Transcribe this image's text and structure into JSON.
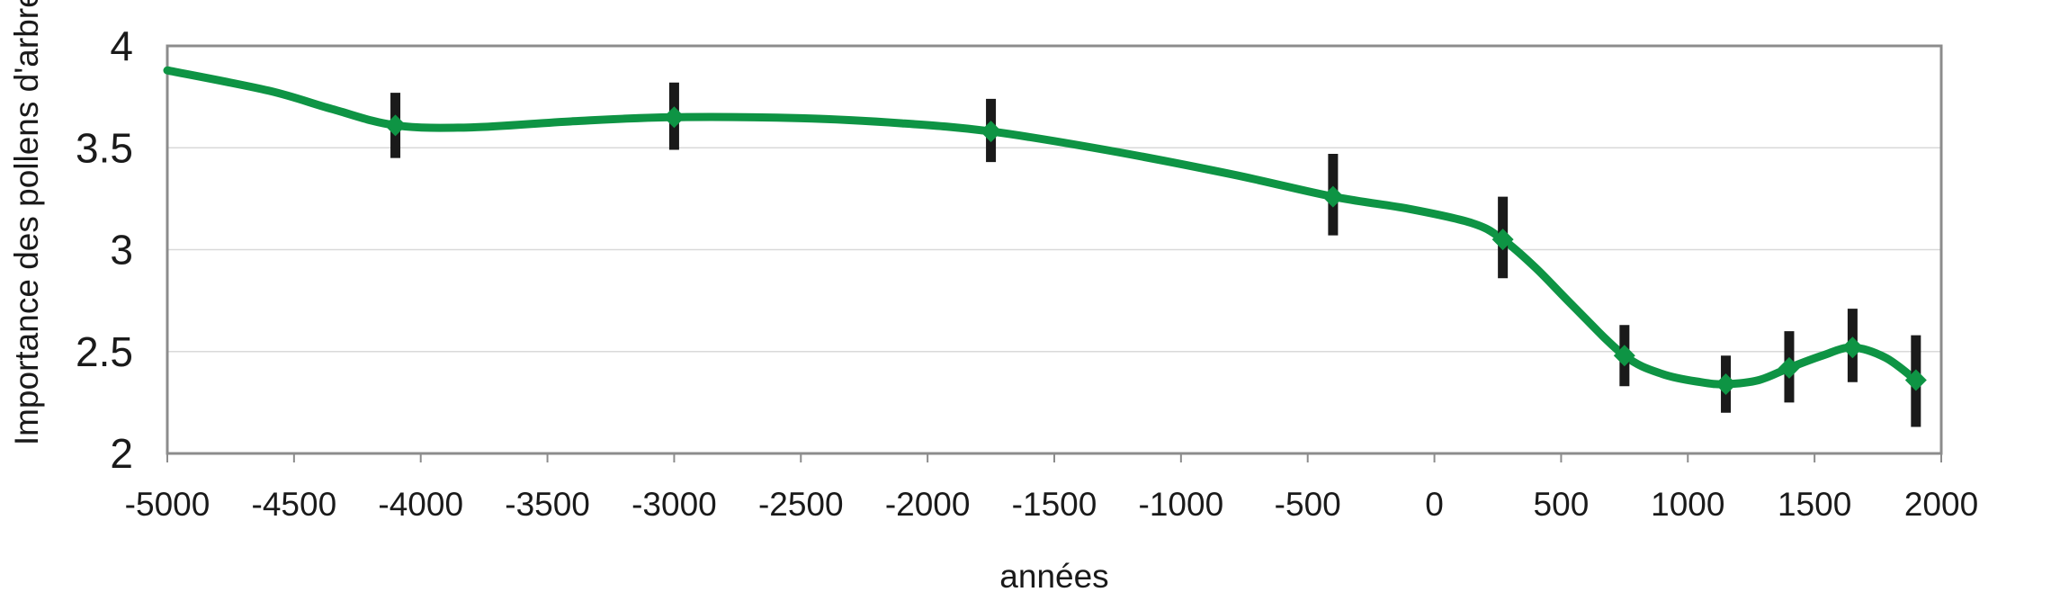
{
  "chart_data": {
    "type": "line",
    "xlabel": "années",
    "ylabel": "Importance des pollens d'arbres",
    "xlim": [
      -5000,
      2000
    ],
    "ylim": [
      2,
      4
    ],
    "xticks": [
      -5000,
      -4500,
      -4000,
      -3500,
      -3000,
      -2500,
      -2000,
      -1500,
      -1000,
      -500,
      0,
      500,
      1000,
      1500,
      2000
    ],
    "xtick_labels": [
      "-5000",
      "-4500",
      "-4000",
      "-3500",
      "-3000",
      "-2500",
      "-2000",
      "-1500",
      "-1000",
      "-500",
      "0",
      "500",
      "1000",
      "1500",
      "2000"
    ],
    "yticks": [
      2,
      2.5,
      3,
      3.5,
      4
    ],
    "ytick_labels": [
      "2",
      "2.5",
      "3",
      "3.5",
      "4"
    ],
    "grid": "horizontal",
    "series": [
      {
        "color": "#0e9444",
        "x": [
          -4100,
          -3000,
          -1750,
          -400,
          270,
          750,
          1150,
          1400,
          1650,
          1900
        ],
        "values": [
          3.61,
          3.65,
          3.58,
          3.26,
          3.05,
          2.48,
          2.34,
          2.42,
          2.52,
          2.36
        ],
        "error_low": [
          3.45,
          3.49,
          3.43,
          3.07,
          2.86,
          2.33,
          2.2,
          2.25,
          2.35,
          2.13
        ],
        "error_high": [
          3.77,
          3.82,
          3.74,
          3.47,
          3.26,
          2.63,
          2.48,
          2.6,
          2.71,
          2.58
        ]
      }
    ],
    "curve": [
      [
        -5000,
        3.88
      ],
      [
        -4600,
        3.78
      ],
      [
        -4350,
        3.69
      ],
      [
        -4100,
        3.61
      ],
      [
        -3800,
        3.6
      ],
      [
        -3400,
        3.63
      ],
      [
        -3000,
        3.65
      ],
      [
        -2500,
        3.645
      ],
      [
        -2100,
        3.62
      ],
      [
        -1750,
        3.58
      ],
      [
        -1300,
        3.49
      ],
      [
        -800,
        3.37
      ],
      [
        -400,
        3.26
      ],
      [
        -100,
        3.2
      ],
      [
        150,
        3.13
      ],
      [
        270,
        3.05
      ],
      [
        400,
        2.91
      ],
      [
        550,
        2.72
      ],
      [
        750,
        2.48
      ],
      [
        900,
        2.39
      ],
      [
        1050,
        2.35
      ],
      [
        1150,
        2.34
      ],
      [
        1280,
        2.36
      ],
      [
        1400,
        2.42
      ],
      [
        1530,
        2.48
      ],
      [
        1650,
        2.52
      ],
      [
        1780,
        2.47
      ],
      [
        1900,
        2.36
      ]
    ],
    "line_color": "#0e9444",
    "error_bar_color": "#1a1a1a",
    "frame_color": "#8c8c8c",
    "grid_color": "#d9d9d9"
  }
}
